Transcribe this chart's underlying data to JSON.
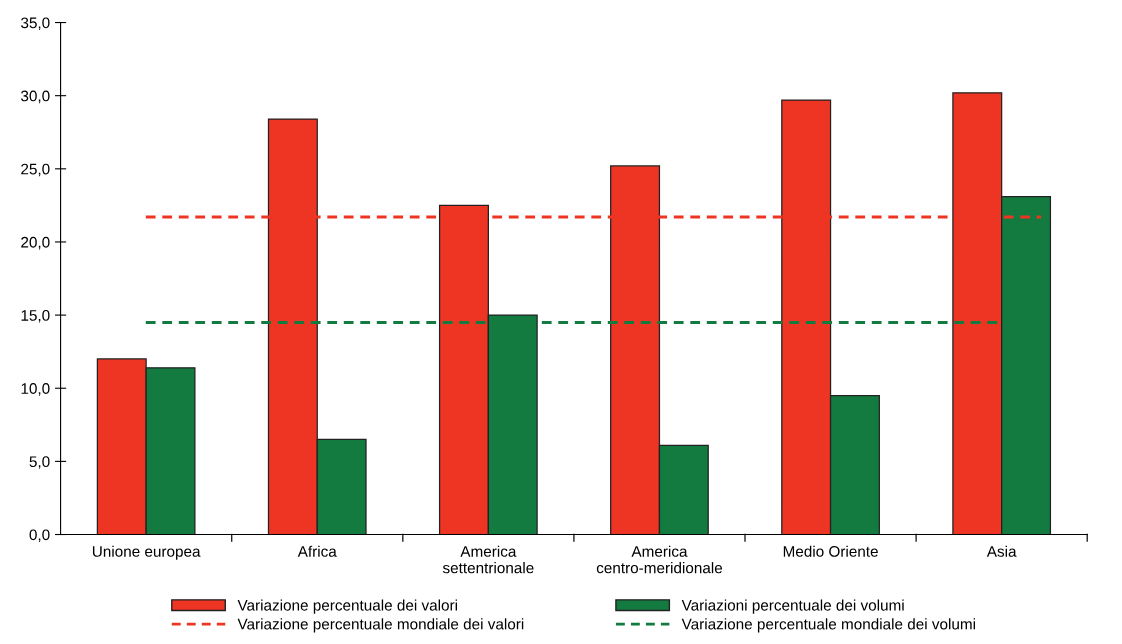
{
  "chart_data": {
    "type": "bar",
    "categories": [
      "Unione europea",
      "Africa",
      "America\nsettentrionale",
      "America\ncentro-meridionale",
      "Medio Oriente",
      "Asia"
    ],
    "series": [
      {
        "name": "Variazione percentuale dei valori",
        "color": "#ee3524",
        "values": [
          12.0,
          28.4,
          22.5,
          25.2,
          29.7,
          30.2
        ]
      },
      {
        "name": "Variazioni percentuale dei volumi",
        "color": "#137b3f",
        "values": [
          11.4,
          6.5,
          15.0,
          6.1,
          9.5,
          23.1
        ]
      }
    ],
    "ref_lines": [
      {
        "axis": "y",
        "value": 21.7,
        "label": "Variazione percentuale mondiale dei valori",
        "color": "#ee3524",
        "line_style": "dashed"
      },
      {
        "axis": "y",
        "value": 14.5,
        "label": "Variazione percentuale mondiale dei volumi",
        "color": "#137b3f",
        "line_style": "dashed"
      }
    ],
    "ylim": [
      0,
      35
    ],
    "yticks": [
      {
        "value": 0,
        "label": "0,0"
      },
      {
        "value": 5,
        "label": "5,0"
      },
      {
        "value": 10,
        "label": "10,0"
      },
      {
        "value": 15,
        "label": "15,0"
      },
      {
        "value": 20,
        "label": "20,0"
      },
      {
        "value": 25,
        "label": "25,0"
      },
      {
        "value": 30,
        "label": "30,0"
      },
      {
        "value": 35,
        "label": "35,0"
      }
    ],
    "grid": false,
    "legend": "bottom"
  }
}
